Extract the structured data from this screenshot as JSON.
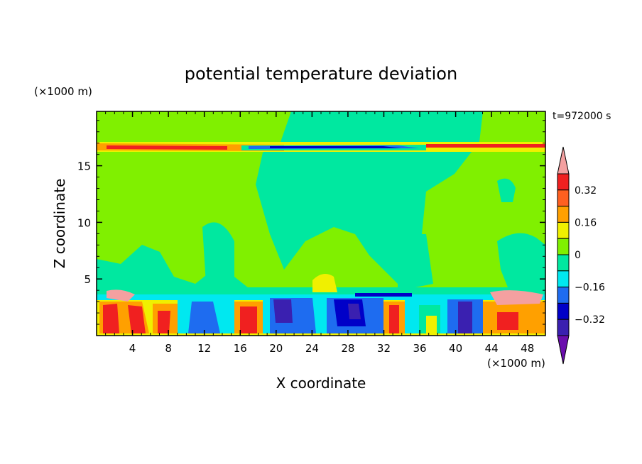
{
  "chart_data": {
    "type": "heatmap",
    "title": "potential temperature deviation",
    "xlabel": "X coordinate",
    "ylabel": "Z coordinate",
    "x_unit": "(×1000 m)",
    "y_unit": "(×1000 m)",
    "time_label": "t=972000 s",
    "xlim": [
      0,
      50
    ],
    "ylim": [
      0,
      19.8
    ],
    "x_ticks": [
      "4",
      "8",
      "12",
      "16",
      "20",
      "24",
      "28",
      "32",
      "36",
      "40",
      "44",
      "48"
    ],
    "y_ticks": [
      "5",
      "10",
      "15"
    ],
    "colorbar": {
      "levels": [
        -0.48,
        -0.4,
        -0.32,
        -0.24,
        -0.16,
        -0.08,
        0,
        0.08,
        0.16,
        0.24,
        0.32,
        0.4,
        0.48
      ],
      "labels": [
        "0.32",
        "0.16",
        "0",
        "−0.16",
        "−0.32"
      ],
      "colors_low_to_high": [
        "#6a0dad",
        "#3a20b0",
        "#0000c8",
        "#1e6cf0",
        "#00e8f0",
        "#00e8a0",
        "#80f000",
        "#f0f000",
        "#ffa000",
        "#ff6020",
        "#f02020",
        "#f4a0a0"
      ],
      "extend": "both"
    }
  }
}
